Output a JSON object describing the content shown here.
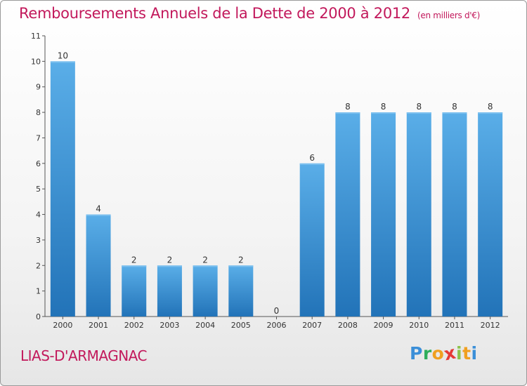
{
  "header": {
    "title": "Remboursements Annuels de la Dette de 2000 à 2012",
    "unit": "(en milliers d'€)"
  },
  "footer": {
    "place": "LIAS-D'ARMAGNAC",
    "logo_letters": [
      {
        "char": "P",
        "color": "#3b8fd8"
      },
      {
        "char": "r",
        "color": "#2fae5b"
      },
      {
        "char": "o",
        "color": "#f0a020"
      },
      {
        "char": "x",
        "color": "#e53935"
      },
      {
        "char": "i",
        "color": "#8bc34a"
      },
      {
        "char": "t",
        "color": "#f0a020"
      },
      {
        "char": "i",
        "color": "#3b8fd8"
      }
    ]
  },
  "colors": {
    "title": "#c2185b",
    "bar_top": "#5aaee8",
    "bar_bottom": "#2273b8",
    "grid": "#c8c8c8"
  },
  "chart_data": {
    "type": "bar",
    "title": "Remboursements Annuels de la Dette de 2000 à 2012",
    "subtitle": "(en milliers d'€)",
    "xlabel": "",
    "ylabel": "",
    "categories": [
      "2000",
      "2001",
      "2002",
      "2003",
      "2004",
      "2005",
      "2006",
      "2007",
      "2008",
      "2009",
      "2010",
      "2011",
      "2012"
    ],
    "values": [
      10,
      4,
      2,
      2,
      2,
      2,
      0,
      6,
      8,
      8,
      8,
      8,
      8
    ],
    "ylim": [
      0,
      11
    ],
    "yticks": [
      0,
      1,
      2,
      3,
      4,
      5,
      6,
      7,
      8,
      9,
      10,
      11
    ],
    "grid": false,
    "data_labels": true
  }
}
